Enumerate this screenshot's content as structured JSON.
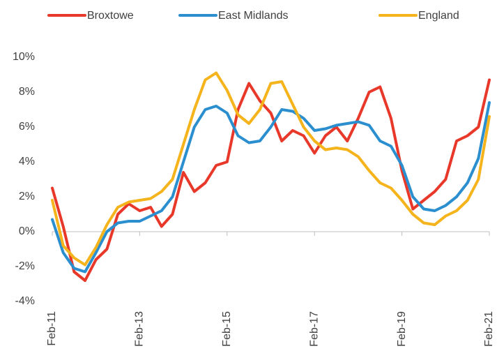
{
  "chart_data": {
    "type": "line",
    "categories": [
      "Feb-11",
      null,
      null,
      null,
      null,
      null,
      null,
      null,
      "Feb-13",
      null,
      null,
      null,
      null,
      null,
      null,
      null,
      "Feb-15",
      null,
      null,
      null,
      null,
      null,
      null,
      null,
      "Feb-17",
      null,
      null,
      null,
      null,
      null,
      null,
      null,
      "Feb-19",
      null,
      null,
      null,
      null,
      null,
      null,
      null,
      "Feb-21"
    ],
    "series": [
      {
        "name": "Broxtowe",
        "color": "#e8382a",
        "values": [
          2.5,
          0.3,
          -2.3,
          -2.8,
          -1.6,
          -1.0,
          1.0,
          1.6,
          1.2,
          1.4,
          0.3,
          1.0,
          3.4,
          2.3,
          2.8,
          3.8,
          4.0,
          7.0,
          8.5,
          7.5,
          6.8,
          5.2,
          5.8,
          5.5,
          4.5,
          5.5,
          6.0,
          5.2,
          6.5,
          8.0,
          8.3,
          6.5,
          3.5,
          1.3,
          1.8,
          2.3,
          3.0,
          5.2,
          5.5,
          6.0,
          8.7
        ]
      },
      {
        "name": "East Midlands",
        "color": "#2b8fcf",
        "values": [
          0.7,
          -1.2,
          -2.1,
          -2.3,
          -1.2,
          0.0,
          0.5,
          0.6,
          0.6,
          0.9,
          1.2,
          2.0,
          4.0,
          6.0,
          7.0,
          7.2,
          6.8,
          5.5,
          5.1,
          5.2,
          6.0,
          7.0,
          6.9,
          6.5,
          5.8,
          5.9,
          6.1,
          6.2,
          6.3,
          6.1,
          5.2,
          4.9,
          3.8,
          2.0,
          1.3,
          1.2,
          1.5,
          2.0,
          2.8,
          4.2,
          7.4
        ]
      },
      {
        "name": "England",
        "color": "#f5b31c",
        "values": [
          1.8,
          -0.8,
          -1.5,
          -1.9,
          -0.9,
          0.4,
          1.4,
          1.7,
          1.8,
          1.9,
          2.3,
          3.0,
          5.0,
          7.0,
          8.7,
          9.1,
          8.1,
          6.7,
          6.2,
          7.0,
          8.5,
          8.6,
          7.3,
          6.0,
          5.2,
          4.7,
          4.8,
          4.7,
          4.3,
          3.5,
          2.8,
          2.5,
          1.8,
          1.0,
          0.5,
          0.4,
          0.9,
          1.2,
          1.8,
          3.0,
          6.6
        ]
      }
    ],
    "ylim": [
      -4,
      10
    ],
    "yticks": [
      {
        "value": -4,
        "label": "-4%"
      },
      {
        "value": -2,
        "label": "-2%"
      },
      {
        "value": 0,
        "label": "0%"
      },
      {
        "value": 2,
        "label": "2%"
      },
      {
        "value": 4,
        "label": "4%"
      },
      {
        "value": 6,
        "label": "6%"
      },
      {
        "value": 8,
        "label": "8%"
      },
      {
        "value": 10,
        "label": "10%"
      }
    ],
    "grid": false,
    "legend": "top"
  }
}
